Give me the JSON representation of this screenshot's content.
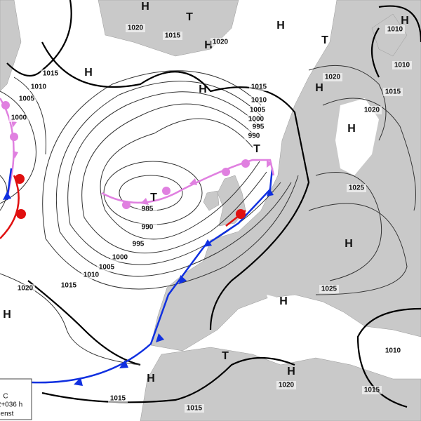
{
  "map": {
    "centers": [
      "H",
      "T",
      "H",
      "H",
      "T",
      "H",
      "H",
      "H",
      "H",
      "H",
      "T",
      "T",
      "H",
      "H",
      "H",
      "T",
      "H",
      "H"
    ],
    "isobar_labels": [
      "1020",
      "1015",
      "1020",
      "1015",
      "1010",
      "1005",
      "1000",
      "1015",
      "1010",
      "1005",
      "1000",
      "995",
      "990",
      "985",
      "990",
      "995",
      "1000",
      "1005",
      "1010",
      "1015",
      "1020",
      "1020",
      "1020",
      "1025",
      "1025",
      "1010",
      "1010",
      "1015",
      "1010",
      "1015",
      "1020",
      "1015",
      "1015"
    ],
    "legend": [
      "C",
      "2+036 h",
      "enst"
    ]
  }
}
